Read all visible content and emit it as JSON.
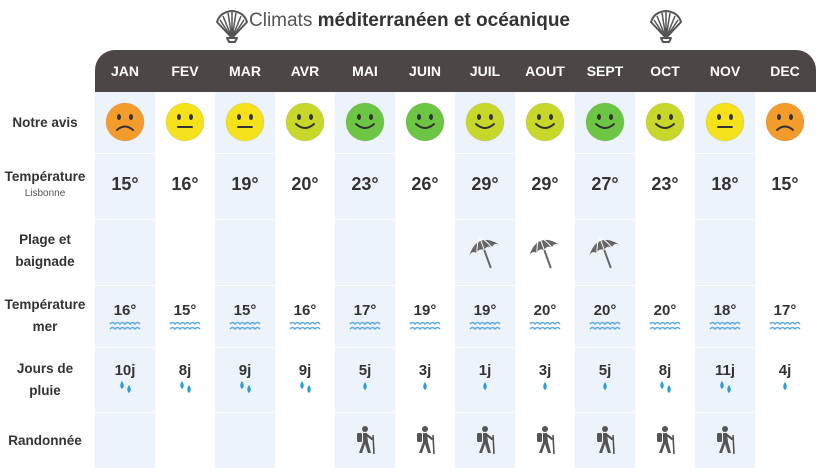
{
  "header": {
    "title_light": "Climats",
    "title_bold": "méditerranéen et océanique",
    "icon": "shell-icon"
  },
  "months": [
    "JAN",
    "FEV",
    "MAR",
    "AVR",
    "MAI",
    "JUIN",
    "JUIL",
    "AOUT",
    "SEPT",
    "OCT",
    "NOV",
    "DEC"
  ],
  "rows": {
    "avis": {
      "label": "Notre avis"
    },
    "temperature": {
      "label": "Température",
      "sublabel": "Lisbonne"
    },
    "plage": {
      "label": "Plage et baignade"
    },
    "mer": {
      "label": "Température mer"
    },
    "pluie": {
      "label": "Jours de pluie"
    },
    "rando": {
      "label": "Randonnée"
    }
  },
  "avis": [
    {
      "mood": "sad",
      "color": "#f39c2c"
    },
    {
      "mood": "neutral",
      "color": "#f5e21a"
    },
    {
      "mood": "neutral",
      "color": "#f5e21a"
    },
    {
      "mood": "happy",
      "color": "#c7d82a"
    },
    {
      "mood": "happy",
      "color": "#6cc644"
    },
    {
      "mood": "happy",
      "color": "#6cc644"
    },
    {
      "mood": "happy",
      "color": "#c7d82a"
    },
    {
      "mood": "happy",
      "color": "#c7d82a"
    },
    {
      "mood": "happy",
      "color": "#6cc644"
    },
    {
      "mood": "happy",
      "color": "#c7d82a"
    },
    {
      "mood": "neutral",
      "color": "#f5e21a"
    },
    {
      "mood": "sad",
      "color": "#f39c2c"
    }
  ],
  "temperatures": [
    "15°",
    "16°",
    "19°",
    "20°",
    "23°",
    "26°",
    "29°",
    "29°",
    "27°",
    "23°",
    "18°",
    "15°"
  ],
  "plage": [
    false,
    false,
    false,
    false,
    false,
    false,
    true,
    true,
    true,
    false,
    false,
    false
  ],
  "plage_icon": "umbrella-icon",
  "mer": [
    "16°",
    "15°",
    "15°",
    "16°",
    "17°",
    "19°",
    "19°",
    "20°",
    "20°",
    "20°",
    "18°",
    "17°"
  ],
  "mer_icon": "waves-icon",
  "pluie": [
    {
      "days": "10j",
      "drops": 2
    },
    {
      "days": "8j",
      "drops": 2
    },
    {
      "days": "9j",
      "drops": 2
    },
    {
      "days": "9j",
      "drops": 2
    },
    {
      "days": "5j",
      "drops": 1
    },
    {
      "days": "3j",
      "drops": 1
    },
    {
      "days": "1j",
      "drops": 1
    },
    {
      "days": "3j",
      "drops": 1
    },
    {
      "days": "5j",
      "drops": 1
    },
    {
      "days": "8j",
      "drops": 2
    },
    {
      "days": "11j",
      "drops": 2
    },
    {
      "days": "4j",
      "drops": 1
    }
  ],
  "pluie_icon": "raindrop-icon",
  "rando": [
    false,
    false,
    false,
    false,
    true,
    true,
    true,
    true,
    true,
    true,
    true,
    false
  ],
  "rando_icon": "hiker-icon",
  "colors": {
    "header_bar": "#4c4646",
    "stripe": "#edf3fb",
    "drop": "#2a9fd6",
    "wave": "#5ba7e0",
    "umbrella": "#666666",
    "hiker": "#555555"
  }
}
